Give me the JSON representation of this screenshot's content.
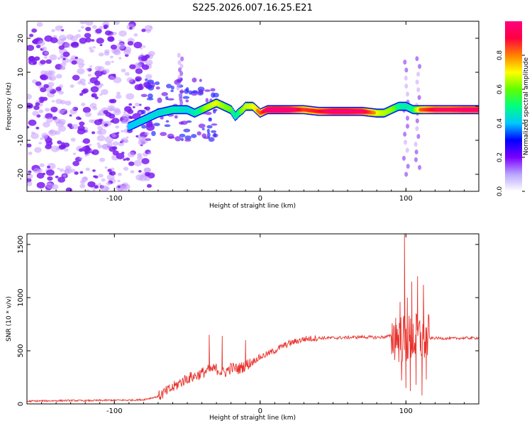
{
  "title": "S225.2026.007.16.25.E21",
  "colors": {
    "spectrogram_background": "#ffffff",
    "speckle_dark": "#7a1cf0",
    "speckle_light": "#c79cff",
    "snr_line": "#e8302a",
    "axis": "#000000"
  },
  "chart_data": [
    {
      "type": "heatmap",
      "title": "S225.2026.007.16.25.E21",
      "xlabel": "Height of straight line (km)",
      "ylabel": "Frequency (Hz)",
      "xlim": [
        -160,
        150
      ],
      "ylim": [
        -25,
        25
      ],
      "xticks": [
        "-100",
        "0",
        "100"
      ],
      "xtick_values": [
        -100,
        0,
        100
      ],
      "yticks": [
        "-20",
        "-10",
        "0",
        "10",
        "20"
      ],
      "ytick_values": [
        -20,
        -10,
        0,
        10,
        20
      ],
      "colorbar": {
        "label": "Normalized spectral amplitude",
        "range": [
          0,
          1
        ],
        "ticks": [
          "0.0",
          "0.2",
          "0.4",
          "0.6",
          "0.8"
        ],
        "tick_values": [
          0.0,
          0.2,
          0.4,
          0.6,
          0.8
        ],
        "colormap": [
          "#ffffff",
          "#b9a6ff",
          "#7b00ff",
          "#0000ff",
          "#00c8ff",
          "#00ff80",
          "#60ff00",
          "#ffff00",
          "#ff8000",
          "#ff0040",
          "#ff0080"
        ]
      },
      "noise_region": {
        "x_from": -160,
        "x_to": -78,
        "y_from": -25,
        "y_to": 25
      },
      "ridge": {
        "x": [
          -90,
          -80,
          -70,
          -60,
          -50,
          -45,
          -40,
          -35,
          -30,
          -25,
          -20,
          -17,
          -15,
          -12,
          -10,
          -5,
          0,
          5,
          10,
          20,
          30,
          40,
          50,
          60,
          70,
          80,
          85,
          90,
          95,
          100,
          105,
          110,
          120,
          130,
          140,
          150
        ],
        "freq": [
          -6,
          -4,
          -2,
          -1,
          -1,
          -2,
          -1,
          0,
          1,
          0,
          -1,
          -3,
          -2,
          -1,
          0,
          0,
          -2,
          -1,
          -1,
          -1,
          -1,
          -1.5,
          -1.5,
          -1.5,
          -1.5,
          -2,
          -2,
          -1,
          0,
          0,
          -1,
          -1,
          -1,
          -1,
          -1,
          -1
        ],
        "amplitude": [
          0.25,
          0.3,
          0.3,
          0.35,
          0.3,
          0.35,
          0.45,
          0.55,
          0.6,
          0.5,
          0.45,
          0.35,
          0.4,
          0.5,
          0.55,
          0.6,
          0.7,
          0.95,
          1.0,
          0.95,
          0.75,
          0.8,
          0.95,
          0.95,
          0.9,
          0.6,
          0.55,
          0.5,
          0.4,
          0.35,
          0.4,
          0.7,
          0.85,
          0.85,
          0.9,
          0.9
        ]
      },
      "side_streaks": [
        {
          "x": -55,
          "freq_from": 0,
          "freq_to": 15
        },
        {
          "x": 100,
          "freq_from": -20,
          "freq_to": 13
        },
        {
          "x": 108,
          "freq_from": -18,
          "freq_to": 14
        }
      ]
    },
    {
      "type": "line",
      "title": "",
      "xlabel": "Height of straight line (km)",
      "ylabel": "SNR (10 * v/v)",
      "xlim": [
        -160,
        150
      ],
      "ylim": [
        0,
        1600
      ],
      "xticks": [
        "-100",
        "0",
        "100"
      ],
      "xtick_values": [
        -100,
        0,
        100
      ],
      "yticks": [
        "0",
        "500",
        "1000",
        "1500"
      ],
      "ytick_values": [
        0,
        500,
        1000,
        1500
      ],
      "series": [
        {
          "name": "SNR",
          "x": [
            -160,
            -150,
            -140,
            -130,
            -120,
            -110,
            -100,
            -90,
            -80,
            -70,
            -65,
            -60,
            -55,
            -50,
            -45,
            -40,
            -35,
            -30,
            -25,
            -20,
            -15,
            -10,
            -5,
            0,
            5,
            10,
            15,
            20,
            25,
            30,
            40,
            50,
            60,
            70,
            80,
            85,
            90,
            95,
            100,
            105,
            110,
            115,
            120,
            130,
            140,
            150
          ],
          "values": [
            25,
            28,
            30,
            32,
            30,
            33,
            35,
            35,
            40,
            70,
            110,
            150,
            200,
            240,
            260,
            290,
            320,
            330,
            290,
            340,
            330,
            360,
            400,
            440,
            470,
            500,
            540,
            570,
            590,
            610,
            620,
            620,
            625,
            630,
            625,
            630,
            640,
            620,
            600,
            620,
            620,
            615,
            620,
            615,
            620,
            620
          ]
        }
      ],
      "spikes": [
        {
          "x": -35,
          "value": 650
        },
        {
          "x": -26,
          "value": 640
        },
        {
          "x": -10,
          "value": 600
        },
        {
          "x": 93,
          "value": 810
        },
        {
          "x": 96,
          "value": 960
        },
        {
          "x": 99,
          "value": 1600
        },
        {
          "x": 101,
          "value": 1000
        },
        {
          "x": 104,
          "value": 1150
        },
        {
          "x": 108,
          "value": 1200
        },
        {
          "x": 112,
          "value": 1120
        }
      ],
      "dips": [
        {
          "x": 97,
          "value": 220
        },
        {
          "x": 100,
          "value": 150
        },
        {
          "x": 103,
          "value": 120
        },
        {
          "x": 107,
          "value": 180
        },
        {
          "x": 111,
          "value": 80
        },
        {
          "x": 114,
          "value": 230
        }
      ]
    }
  ]
}
